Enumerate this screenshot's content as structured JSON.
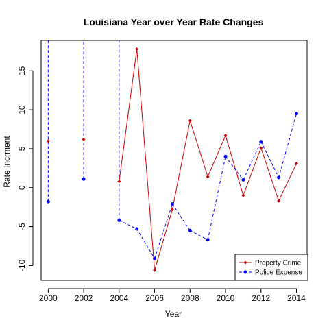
{
  "chart_data": {
    "type": "line",
    "title": "Louisiana Year over Year Rate Changes",
    "xlabel": "Year",
    "ylabel": "Rate Incrment",
    "xlim": [
      1999.6,
      2014.6
    ],
    "ylim": [
      -11.9,
      18.9
    ],
    "x_ticks": [
      2000,
      2002,
      2004,
      2006,
      2008,
      2010,
      2012,
      2014
    ],
    "y_ticks": [
      -10,
      -5,
      0,
      5,
      10,
      15
    ],
    "grid": false,
    "legend_position": "bottom-right",
    "series": [
      {
        "name": "Property Crime",
        "color": "#cc0000",
        "line_style": "solid",
        "marker": "diamond",
        "points": [
          {
            "x": 2000,
            "y": 6.0
          },
          {
            "x": 2002,
            "y": 6.2
          },
          {
            "x": 2004,
            "y": 0.8
          },
          {
            "x": 2005,
            "y": 17.8
          },
          {
            "x": 2006,
            "y": -10.6
          },
          {
            "x": 2007,
            "y": -2.8
          },
          {
            "x": 2008,
            "y": 8.6
          },
          {
            "x": 2009,
            "y": 1.4
          },
          {
            "x": 2010,
            "y": 6.7
          },
          {
            "x": 2011,
            "y": -1.0
          },
          {
            "x": 2012,
            "y": 5.1
          },
          {
            "x": 2013,
            "y": -1.7
          },
          {
            "x": 2014,
            "y": 3.1
          }
        ],
        "segments": [
          [
            2,
            3
          ],
          [
            3,
            4
          ],
          [
            4,
            5
          ],
          [
            5,
            6
          ],
          [
            6,
            7
          ],
          [
            7,
            8
          ],
          [
            8,
            9
          ],
          [
            9,
            10
          ],
          [
            10,
            11
          ],
          [
            11,
            12
          ]
        ]
      },
      {
        "name": "Police Expense",
        "color": "#0000ff",
        "line_style": "dashed",
        "marker": "circle",
        "points": [
          {
            "x": 2000,
            "y": -1.8
          },
          {
            "x": 2002,
            "y": 1.1
          },
          {
            "x": 2004,
            "y": -4.2
          },
          {
            "x": 2005,
            "y": -5.3
          },
          {
            "x": 2006,
            "y": -9.1
          },
          {
            "x": 2007,
            "y": -2.1
          },
          {
            "x": 2008,
            "y": -5.5
          },
          {
            "x": 2009,
            "y": -6.7
          },
          {
            "x": 2010,
            "y": 4.0
          },
          {
            "x": 2011,
            "y": 1.0
          },
          {
            "x": 2012,
            "y": 5.9
          },
          {
            "x": 2013,
            "y": 1.3
          },
          {
            "x": 2014,
            "y": 9.5
          }
        ],
        "off_chart_lines": [
          0,
          1,
          2
        ],
        "segments": [
          [
            2,
            3
          ],
          [
            3,
            4
          ],
          [
            4,
            5
          ],
          [
            5,
            6
          ],
          [
            6,
            7
          ],
          [
            7,
            8
          ],
          [
            8,
            9
          ],
          [
            9,
            10
          ],
          [
            10,
            11
          ],
          [
            11,
            12
          ]
        ]
      }
    ]
  }
}
